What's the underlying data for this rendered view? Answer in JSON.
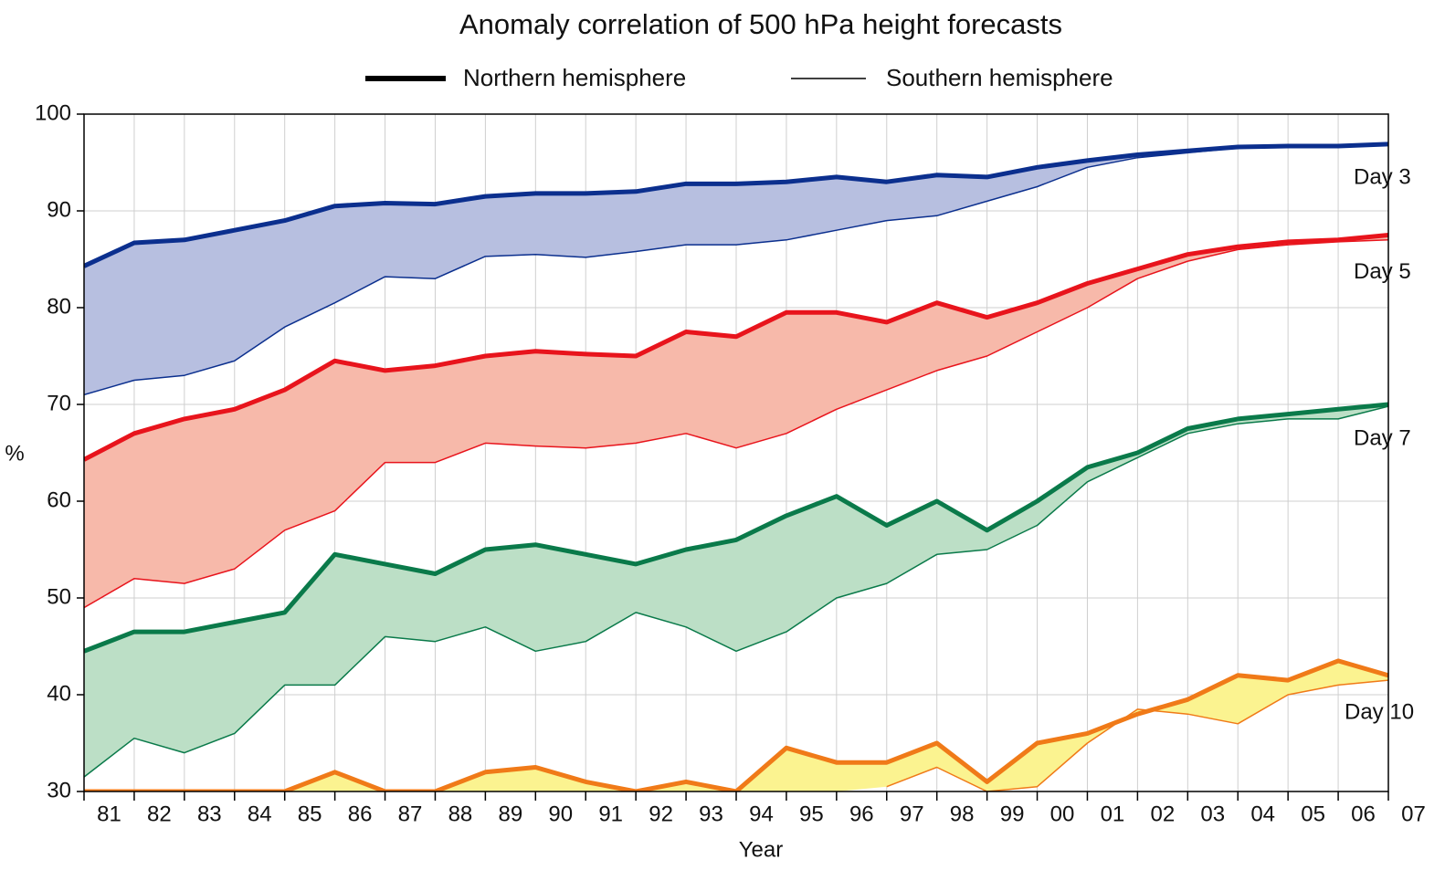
{
  "chart_data": {
    "type": "line",
    "title": "Anomaly correlation of 500 hPa height forecasts",
    "xlabel": "Year",
    "ylabel": "%",
    "legend": [
      "Northern hemisphere",
      "Southern hemisphere"
    ],
    "xlim": [
      1981,
      2007
    ],
    "ylim": [
      30,
      100
    ],
    "yticks": [
      30,
      40,
      50,
      60,
      70,
      80,
      90,
      100
    ],
    "xticks": [
      {
        "value": 1981,
        "label": "81"
      },
      {
        "value": 1982,
        "label": "82"
      },
      {
        "value": 1983,
        "label": "83"
      },
      {
        "value": 1984,
        "label": "84"
      },
      {
        "value": 1985,
        "label": "85"
      },
      {
        "value": 1986,
        "label": "86"
      },
      {
        "value": 1987,
        "label": "87"
      },
      {
        "value": 1988,
        "label": "88"
      },
      {
        "value": 1989,
        "label": "89"
      },
      {
        "value": 1990,
        "label": "90"
      },
      {
        "value": 1991,
        "label": "91"
      },
      {
        "value": 1992,
        "label": "92"
      },
      {
        "value": 1993,
        "label": "93"
      },
      {
        "value": 1994,
        "label": "94"
      },
      {
        "value": 1995,
        "label": "95"
      },
      {
        "value": 1996,
        "label": "96"
      },
      {
        "value": 1997,
        "label": "97"
      },
      {
        "value": 1998,
        "label": "98"
      },
      {
        "value": 1999,
        "label": "99"
      },
      {
        "value": 2000,
        "label": "00"
      },
      {
        "value": 2001,
        "label": "01"
      },
      {
        "value": 2002,
        "label": "02"
      },
      {
        "value": 2003,
        "label": "03"
      },
      {
        "value": 2004,
        "label": "04"
      },
      {
        "value": 2005,
        "label": "05"
      },
      {
        "value": 2006,
        "label": "06"
      },
      {
        "value": 2007,
        "label": "07"
      }
    ],
    "grid": true,
    "x": [
      1981,
      1982,
      1983,
      1984,
      1985,
      1986,
      1987,
      1988,
      1989,
      1990,
      1991,
      1992,
      1993,
      1994,
      1995,
      1996,
      1997,
      1998,
      1999,
      2000,
      2001,
      2002,
      2003,
      2004,
      2005,
      2006,
      2007
    ],
    "groups": [
      {
        "name": "Day 3",
        "color": "#0b2f8e",
        "fill": "#b7bfe0",
        "nh": [
          84.3,
          86.7,
          87,
          88,
          89,
          90.5,
          90.8,
          90.7,
          91.5,
          91.8,
          91.8,
          92,
          92.8,
          92.8,
          93,
          93.5,
          93,
          93.7,
          93.5,
          94.5,
          95.2,
          95.8,
          96.2,
          96.6,
          96.7,
          96.7,
          96.9
        ],
        "sh": [
          71,
          72.5,
          73,
          74.5,
          78,
          80.5,
          83.2,
          83,
          85.3,
          85.5,
          85.2,
          85.8,
          86.5,
          86.5,
          87,
          88,
          89,
          89.5,
          91,
          92.5,
          94.5,
          95.5,
          96,
          96.5,
          96.7,
          96.7,
          96.8
        ]
      },
      {
        "name": "Day 5",
        "color": "#e8141c",
        "fill": "#f7b9aa",
        "nh": [
          64.3,
          67,
          68.5,
          69.5,
          71.5,
          74.5,
          73.5,
          74,
          75,
          75.5,
          75.2,
          75,
          77.5,
          77,
          79.5,
          79.5,
          78.5,
          80.5,
          79,
          80.5,
          82.5,
          84,
          85.5,
          86.3,
          86.8,
          87,
          87.5
        ],
        "sh": [
          49,
          52,
          51.5,
          53,
          57,
          59,
          64,
          64,
          66,
          65.7,
          65.5,
          66,
          67,
          65.5,
          67,
          69.5,
          71.5,
          73.5,
          75,
          77.5,
          80,
          83,
          84.8,
          86,
          86.5,
          86.8,
          87
        ]
      },
      {
        "name": "Day 7",
        "color": "#0a7a4a",
        "fill": "#bcdfc6",
        "nh": [
          44.5,
          46.5,
          46.5,
          47.5,
          48.5,
          54.5,
          53.5,
          52.5,
          55,
          55.5,
          54.5,
          53.5,
          55,
          56,
          58.5,
          60.5,
          57.5,
          60,
          57,
          60,
          63.5,
          65,
          67.5,
          68.5,
          69,
          69.5,
          70
        ],
        "sh": [
          31.5,
          35.5,
          34,
          36,
          41,
          41,
          46,
          45.5,
          47,
          44.5,
          45.5,
          48.5,
          47,
          44.5,
          46.5,
          50,
          51.5,
          54.5,
          55,
          57.5,
          62,
          64.5,
          67,
          68,
          68.5,
          68.5,
          69.8
        ]
      },
      {
        "name": "Day 10",
        "color": "#f07a18",
        "fill": "#fbf390",
        "nh": [
          30,
          30,
          30,
          30,
          30,
          32,
          30,
          30,
          32,
          32.5,
          31,
          30,
          31,
          30,
          34.5,
          33,
          33,
          35,
          31,
          35,
          36,
          38,
          39.5,
          42,
          41.5,
          43.5,
          42
        ],
        "sh": [
          null,
          null,
          null,
          null,
          null,
          null,
          null,
          null,
          null,
          null,
          null,
          null,
          null,
          null,
          null,
          null,
          30.5,
          32.5,
          30,
          30.5,
          35,
          38.5,
          38,
          37,
          40,
          41,
          41.5
        ]
      }
    ]
  }
}
